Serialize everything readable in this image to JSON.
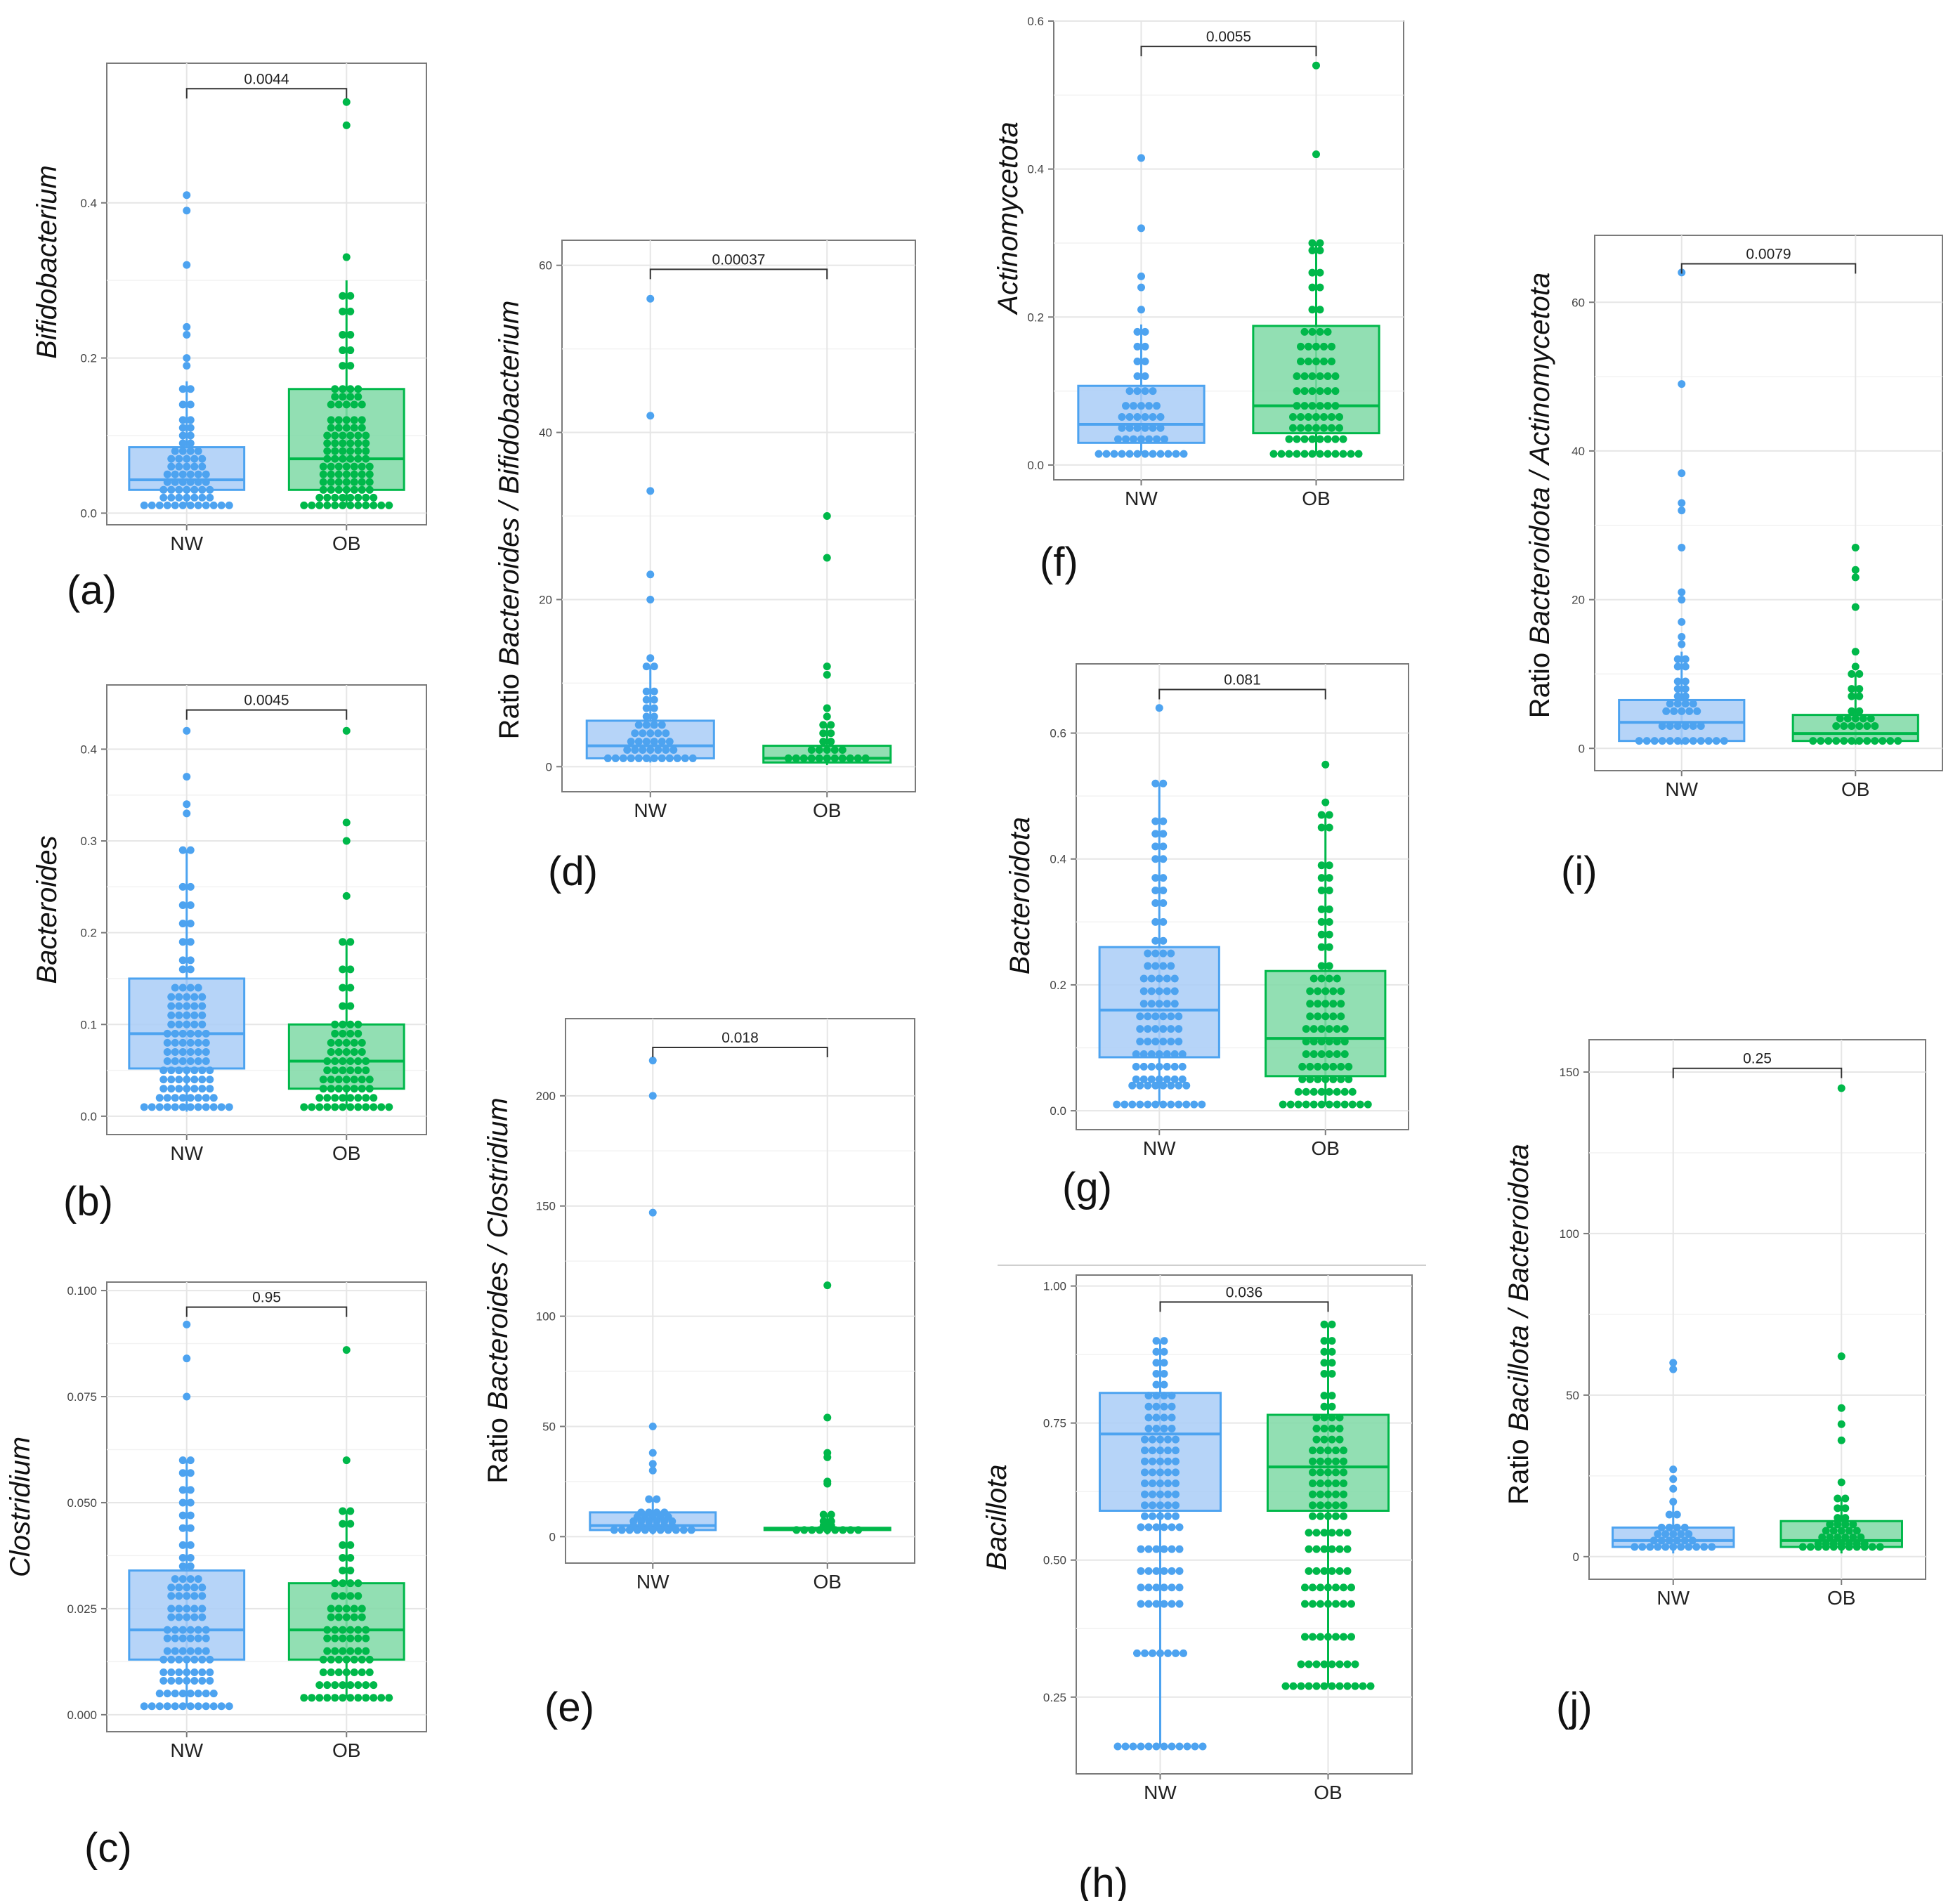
{
  "colors": {
    "nw": "#4da3f0",
    "ob": "#00b84a",
    "nw_fill": "#a9cdf7",
    "ob_fill": "#7fd9a6",
    "grid": "#e6e6e6",
    "frame": "#7a7a7a",
    "bracket": "#333333"
  },
  "chart_data": [
    {
      "panel": "(a)",
      "type": "box-dotplot",
      "ylabel": "Bifidobacterium",
      "ylabel_prefix": "",
      "categories": [
        "NW",
        "OB"
      ],
      "p_value": "0.0044",
      "ylim": [
        -0.015,
        0.58
      ],
      "yticks": [
        "0.0",
        "0.2",
        "0.4"
      ],
      "ytick_values": [
        0,
        0.2,
        0.4
      ],
      "series": [
        {
          "group": "NW",
          "box": {
            "q1": 0.03,
            "median": 0.043,
            "q3": 0.085
          },
          "whisker": [
            0.01,
            0.17
          ],
          "points": [
            0.41,
            0.39,
            0.32,
            0.24,
            0.23,
            0.2,
            0.19,
            0.16,
            0.14,
            0.12,
            0.11,
            0.1,
            0.09,
            0.08,
            0.07,
            0.06,
            0.05,
            0.04,
            0.03,
            0.02,
            0.01
          ]
        },
        {
          "group": "OB",
          "box": {
            "q1": 0.03,
            "median": 0.07,
            "q3": 0.16
          },
          "whisker": [
            0.01,
            0.3
          ],
          "points": [
            0.53,
            0.5,
            0.33,
            0.28,
            0.26,
            0.23,
            0.21,
            0.19,
            0.16,
            0.15,
            0.14,
            0.12,
            0.11,
            0.1,
            0.09,
            0.08,
            0.07,
            0.06,
            0.05,
            0.04,
            0.03,
            0.02,
            0.01
          ]
        }
      ]
    },
    {
      "panel": "(b)",
      "type": "box-dotplot",
      "ylabel": "Bacteroides",
      "ylabel_prefix": "",
      "categories": [
        "NW",
        "OB"
      ],
      "p_value": "0.0045",
      "ylim": [
        -0.02,
        0.47
      ],
      "yticks": [
        "0.0",
        "0.1",
        "0.2",
        "0.3",
        "0.4"
      ],
      "ytick_values": [
        0,
        0.1,
        0.2,
        0.3,
        0.4
      ],
      "series": [
        {
          "group": "NW",
          "box": {
            "q1": 0.052,
            "median": 0.09,
            "q3": 0.15
          },
          "whisker": [
            0.005,
            0.29
          ],
          "points": [
            0.42,
            0.37,
            0.34,
            0.33,
            0.29,
            0.25,
            0.23,
            0.21,
            0.19,
            0.17,
            0.16,
            0.14,
            0.13,
            0.12,
            0.11,
            0.1,
            0.09,
            0.08,
            0.07,
            0.06,
            0.05,
            0.04,
            0.03,
            0.02,
            0.01
          ]
        },
        {
          "group": "OB",
          "box": {
            "q1": 0.03,
            "median": 0.06,
            "q3": 0.1
          },
          "whisker": [
            0.01,
            0.19
          ],
          "points": [
            0.42,
            0.32,
            0.3,
            0.24,
            0.19,
            0.16,
            0.14,
            0.12,
            0.1,
            0.09,
            0.08,
            0.07,
            0.06,
            0.05,
            0.04,
            0.03,
            0.02,
            0.01
          ]
        }
      ]
    },
    {
      "panel": "(c)",
      "type": "box-dotplot",
      "ylabel": "Clostridium",
      "ylabel_prefix": "",
      "categories": [
        "NW",
        "OB"
      ],
      "p_value": "0.95",
      "ylim": [
        -0.004,
        0.102
      ],
      "yticks": [
        "0.000",
        "0.025",
        "0.050",
        "0.075",
        "0.100"
      ],
      "ytick_values": [
        0,
        0.025,
        0.05,
        0.075,
        0.1
      ],
      "series": [
        {
          "group": "NW",
          "box": {
            "q1": 0.013,
            "median": 0.02,
            "q3": 0.034
          },
          "whisker": [
            0.002,
            0.06
          ],
          "points": [
            0.092,
            0.084,
            0.075,
            0.06,
            0.057,
            0.053,
            0.05,
            0.047,
            0.044,
            0.04,
            0.037,
            0.035,
            0.032,
            0.03,
            0.028,
            0.025,
            0.023,
            0.02,
            0.018,
            0.015,
            0.013,
            0.01,
            0.008,
            0.005,
            0.002
          ]
        },
        {
          "group": "OB",
          "box": {
            "q1": 0.013,
            "median": 0.02,
            "q3": 0.031
          },
          "whisker": [
            0.004,
            0.048
          ],
          "points": [
            0.086,
            0.06,
            0.048,
            0.045,
            0.04,
            0.037,
            0.034,
            0.031,
            0.028,
            0.025,
            0.023,
            0.02,
            0.018,
            0.015,
            0.013,
            0.01,
            0.007,
            0.004
          ]
        }
      ]
    },
    {
      "panel": "(d)",
      "type": "box-dotplot",
      "ylabel": "Bifidobacterium",
      "ylabel_prefix": "Ratio Bacteroides / ",
      "ylabel_italic": "Bacteroides / Bifidobacterium",
      "categories": [
        "NW",
        "OB"
      ],
      "p_value": "0.00037",
      "ylim": [
        -3,
        63
      ],
      "yticks": [
        "0",
        "20",
        "40",
        "60"
      ],
      "ytick_values": [
        0,
        20,
        40,
        60
      ],
      "series": [
        {
          "group": "NW",
          "box": {
            "q1": 1.0,
            "median": 2.5,
            "q3": 5.5
          },
          "whisker": [
            0.5,
            12
          ],
          "points": [
            56,
            42,
            33,
            23,
            20,
            13,
            12,
            9,
            8,
            7,
            6,
            5,
            4,
            3,
            2,
            1
          ]
        },
        {
          "group": "OB",
          "box": {
            "q1": 0.5,
            "median": 1.0,
            "q3": 2.5
          },
          "whisker": [
            0.2,
            5
          ],
          "points": [
            30,
            25,
            12,
            11,
            7,
            6,
            5,
            4,
            3,
            2,
            1
          ]
        }
      ]
    },
    {
      "panel": "(e)",
      "type": "box-dotplot",
      "ylabel": "Clostridium",
      "ylabel_prefix": "Ratio ",
      "ylabel_italic": "Bacteroides / Clostridium",
      "categories": [
        "NW",
        "OB"
      ],
      "p_value": "0.018",
      "ylim": [
        -12,
        235
      ],
      "yticks": [
        "0",
        "50",
        "100",
        "150",
        "200"
      ],
      "ytick_values": [
        0,
        50,
        100,
        150,
        200
      ],
      "series": [
        {
          "group": "NW",
          "box": {
            "q1": 3,
            "median": 5,
            "q3": 11
          },
          "whisker": [
            1,
            17
          ],
          "points": [
            216,
            200,
            147,
            50,
            38,
            33,
            30,
            17,
            11,
            9,
            7,
            5,
            3
          ]
        },
        {
          "group": "OB",
          "box": {
            "q1": 3,
            "median": 3.5,
            "q3": 4
          },
          "whisker": [
            1,
            10
          ],
          "points": [
            114,
            54,
            38,
            36,
            25,
            24,
            10,
            7,
            5,
            3
          ]
        }
      ]
    },
    {
      "panel": "(f)",
      "type": "box-dotplot",
      "ylabel": "Actinomycetota",
      "ylabel_prefix": "",
      "categories": [
        "NW",
        "OB"
      ],
      "p_value": "0.0055",
      "ylim": [
        -0.02,
        0.6
      ],
      "yticks": [
        "0.0",
        "0.2",
        "0.4",
        "0.6"
      ],
      "ytick_values": [
        0,
        0.2,
        0.4,
        0.6
      ],
      "series": [
        {
          "group": "NW",
          "box": {
            "q1": 0.03,
            "median": 0.055,
            "q3": 0.107
          },
          "whisker": [
            0.015,
            0.19
          ],
          "points": [
            0.415,
            0.32,
            0.255,
            0.24,
            0.21,
            0.18,
            0.16,
            0.14,
            0.12,
            0.1,
            0.08,
            0.065,
            0.05,
            0.035,
            0.015
          ]
        },
        {
          "group": "OB",
          "box": {
            "q1": 0.043,
            "median": 0.08,
            "q3": 0.188
          },
          "whisker": [
            0.015,
            0.3
          ],
          "points": [
            0.54,
            0.42,
            0.3,
            0.29,
            0.26,
            0.24,
            0.21,
            0.18,
            0.16,
            0.14,
            0.12,
            0.1,
            0.08,
            0.065,
            0.05,
            0.035,
            0.015
          ]
        }
      ]
    },
    {
      "panel": "(g)",
      "type": "box-dotplot",
      "ylabel": "Bacteroidota",
      "ylabel_prefix": "",
      "categories": [
        "NW",
        "OB"
      ],
      "p_value": "0.081",
      "ylim": [
        -0.03,
        0.71
      ],
      "yticks": [
        "0.0",
        "0.2",
        "0.4",
        "0.6"
      ],
      "ytick_values": [
        0,
        0.2,
        0.4,
        0.6
      ],
      "series": [
        {
          "group": "NW",
          "box": {
            "q1": 0.085,
            "median": 0.16,
            "q3": 0.26
          },
          "whisker": [
            0.01,
            0.52
          ],
          "points": [
            0.64,
            0.52,
            0.46,
            0.44,
            0.42,
            0.4,
            0.37,
            0.35,
            0.33,
            0.3,
            0.27,
            0.25,
            0.23,
            0.21,
            0.19,
            0.17,
            0.15,
            0.13,
            0.11,
            0.09,
            0.07,
            0.05,
            0.04,
            0.01
          ]
        },
        {
          "group": "OB",
          "box": {
            "q1": 0.055,
            "median": 0.115,
            "q3": 0.222
          },
          "whisker": [
            0.01,
            0.47
          ],
          "points": [
            0.55,
            0.49,
            0.47,
            0.45,
            0.39,
            0.37,
            0.35,
            0.32,
            0.3,
            0.28,
            0.26,
            0.23,
            0.21,
            0.19,
            0.17,
            0.15,
            0.13,
            0.11,
            0.09,
            0.07,
            0.05,
            0.03,
            0.01
          ]
        }
      ]
    },
    {
      "panel": "(h)",
      "type": "box-dotplot",
      "ylabel": "Bacillota",
      "ylabel_prefix": "",
      "categories": [
        "NW",
        "OB"
      ],
      "p_value": "0.036",
      "ylim": [
        0.11,
        1.02
      ],
      "yticks": [
        "0.25",
        "0.50",
        "0.75",
        "1.00"
      ],
      "ytick_values": [
        0.25,
        0.5,
        0.75,
        1.0
      ],
      "series": [
        {
          "group": "NW",
          "box": {
            "q1": 0.59,
            "median": 0.73,
            "q3": 0.805
          },
          "whisker": [
            0.16,
            0.9
          ],
          "points": [
            0.9,
            0.88,
            0.86,
            0.84,
            0.82,
            0.8,
            0.78,
            0.76,
            0.74,
            0.72,
            0.7,
            0.68,
            0.66,
            0.64,
            0.62,
            0.6,
            0.58,
            0.56,
            0.52,
            0.48,
            0.45,
            0.42,
            0.33,
            0.16
          ]
        },
        {
          "group": "OB",
          "box": {
            "q1": 0.59,
            "median": 0.67,
            "q3": 0.765
          },
          "whisker": [
            0.27,
            0.93
          ],
          "points": [
            0.93,
            0.9,
            0.88,
            0.86,
            0.84,
            0.8,
            0.78,
            0.76,
            0.74,
            0.72,
            0.7,
            0.68,
            0.66,
            0.64,
            0.62,
            0.6,
            0.58,
            0.55,
            0.52,
            0.48,
            0.45,
            0.42,
            0.36,
            0.31,
            0.27
          ]
        }
      ]
    },
    {
      "panel": "(i)",
      "type": "box-dotplot",
      "ylabel": "Actinomycetota",
      "ylabel_prefix": "Ratio ",
      "ylabel_italic": "Bacteroidota / Actinomycetota",
      "categories": [
        "NW",
        "OB"
      ],
      "p_value": "0.0079",
      "ylim": [
        -3,
        69
      ],
      "yticks": [
        "0",
        "20",
        "40",
        "60"
      ],
      "ytick_values": [
        0,
        20,
        40,
        60
      ],
      "series": [
        {
          "group": "NW",
          "box": {
            "q1": 1,
            "median": 3.5,
            "q3": 6.5
          },
          "whisker": [
            0.5,
            13
          ],
          "points": [
            64,
            49,
            37,
            33,
            32,
            27,
            21,
            20,
            17,
            15,
            14,
            12,
            11,
            9,
            8,
            7,
            6,
            5,
            3,
            1
          ]
        },
        {
          "group": "OB",
          "box": {
            "q1": 1,
            "median": 2,
            "q3": 4.5
          },
          "whisker": [
            0.5,
            10
          ],
          "points": [
            27,
            24,
            23,
            19,
            13,
            11,
            10,
            8,
            7,
            5,
            4,
            3,
            1
          ]
        }
      ]
    },
    {
      "panel": "(j)",
      "type": "box-dotplot",
      "ylabel": "Bacteroidota",
      "ylabel_prefix": "Ratio ",
      "ylabel_italic": "Bacillota / Bacteroidota",
      "categories": [
        "NW",
        "OB"
      ],
      "p_value": "0.25",
      "ylim": [
        -7,
        160
      ],
      "yticks": [
        "0",
        "50",
        "100",
        "150"
      ],
      "ytick_values": [
        0,
        50,
        100,
        150
      ],
      "series": [
        {
          "group": "NW",
          "box": {
            "q1": 3,
            "median": 5,
            "q3": 9
          },
          "whisker": [
            1,
            16
          ],
          "points": [
            60,
            58,
            27,
            24,
            21,
            17,
            13,
            9,
            7,
            5,
            3
          ]
        },
        {
          "group": "OB",
          "box": {
            "q1": 3,
            "median": 5,
            "q3": 11
          },
          "whisker": [
            1,
            18
          ],
          "points": [
            145,
            62,
            46,
            41,
            36,
            23,
            18,
            15,
            12,
            10,
            8,
            6,
            4,
            3
          ]
        }
      ]
    }
  ]
}
